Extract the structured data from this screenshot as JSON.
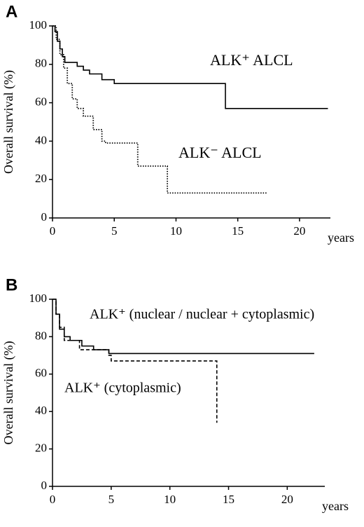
{
  "chart_data": [
    {
      "type": "line",
      "panel": "A",
      "y_label": "Overall survival (%)",
      "x_label": "years",
      "xlim": [
        0,
        22.5
      ],
      "ylim": [
        0,
        100
      ],
      "xticks": [
        0,
        5,
        10,
        15,
        20
      ],
      "yticks": [
        0,
        20,
        40,
        60,
        80,
        100
      ],
      "step": true,
      "series": [
        {
          "name": "ALK⁺ ALCL",
          "color": "#000000",
          "style": "solid",
          "x": [
            0,
            0.2,
            0.4,
            0.6,
            0.8,
            1,
            2,
            2.5,
            3,
            4,
            5,
            14,
            22.3
          ],
          "values": [
            100,
            97,
            92,
            88,
            84,
            81,
            79,
            77,
            75,
            72,
            70,
            57,
            57
          ]
        },
        {
          "name": "ALK⁻ ALCL",
          "color": "#000000",
          "style": "dotted",
          "x": [
            0,
            0.3,
            0.6,
            0.9,
            1.2,
            1.6,
            2,
            2.5,
            3.3,
            4,
            4.3,
            6.9,
            9.3,
            17.4
          ],
          "values": [
            100,
            93,
            85,
            78,
            70,
            62,
            57,
            53,
            46,
            40,
            39,
            27,
            13,
            13
          ]
        }
      ]
    },
    {
      "type": "line",
      "panel": "B",
      "y_label": "Overall survival (%)",
      "x_label": "years",
      "xlim": [
        0,
        23.2
      ],
      "ylim": [
        0,
        100
      ],
      "xticks": [
        0,
        5,
        10,
        15,
        20
      ],
      "yticks": [
        0,
        20,
        40,
        60,
        80,
        100
      ],
      "step": true,
      "series": [
        {
          "name": "ALK⁺ (nuclear / nuclear + cytoplasmic)",
          "color": "#000000",
          "style": "solid",
          "x": [
            0,
            0.3,
            0.6,
            1,
            1.5,
            2.5,
            3.5,
            4.8,
            22.3
          ],
          "values": [
            100,
            92,
            84,
            80,
            78,
            75,
            73,
            71,
            71
          ]
        },
        {
          "name": "ALK⁺ (cytoplasmic)",
          "color": "#000000",
          "style": "dashed",
          "x": [
            0,
            0.3,
            0.6,
            1,
            2.3,
            4.8,
            5,
            13.8,
            14
          ],
          "values": [
            100,
            92,
            85,
            78,
            73,
            70,
            67,
            67,
            34
          ]
        }
      ]
    }
  ]
}
